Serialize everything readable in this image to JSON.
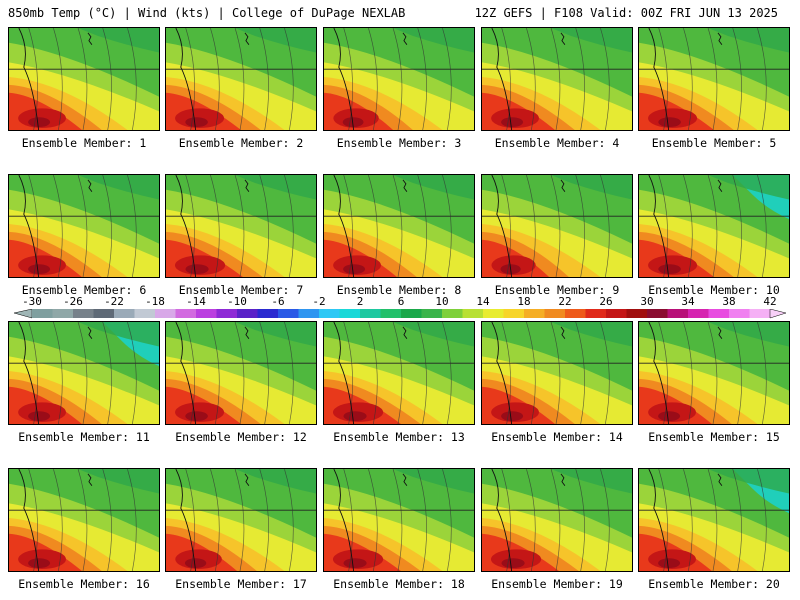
{
  "header": {
    "left": "850mb Temp (°C) | Wind (kts) | College of DuPage NEXLAB",
    "right": "12Z GEFS | F108 Valid: 00Z FRI JUN 13 2025"
  },
  "colorbar": {
    "ticks": [
      "-30",
      "-26",
      "-22",
      "-18",
      "-14",
      "-10",
      "-6",
      "-2",
      "2",
      "6",
      "10",
      "14",
      "18",
      "22",
      "26",
      "30",
      "34",
      "38",
      "42"
    ],
    "colors": [
      "#7f9f9f",
      "#8fa7a7",
      "#77818a",
      "#5f6a77",
      "#9aaab8",
      "#c1c9d4",
      "#d8a8e8",
      "#d26be0",
      "#bb40e0",
      "#8e2ad6",
      "#5a22c8",
      "#2a2ad0",
      "#2a5ae6",
      "#2f96f0",
      "#2ec8f5",
      "#1ad8d8",
      "#1ec8a0",
      "#22c06a",
      "#1aa84a",
      "#3ab44a",
      "#7ed03a",
      "#b8e034",
      "#e8ec30",
      "#f7d52a",
      "#f5ae25",
      "#f08a20",
      "#ee5a1a",
      "#e02a1a",
      "#c41616",
      "#a00e0e",
      "#8a0c30",
      "#b81078",
      "#d624b0",
      "#e84ce0",
      "#f080f0",
      "#f5b0f5"
    ],
    "left_arrow": "#9fb6b6",
    "right_arrow": "#f8d0f8"
  },
  "members": [
    {
      "label": "Ensemble Member: 1",
      "warmth": 0.85,
      "cool": 0.55
    },
    {
      "label": "Ensemble Member: 2",
      "warmth": 0.9,
      "cool": 0.45
    },
    {
      "label": "Ensemble Member: 3",
      "warmth": 0.75,
      "cool": 0.5
    },
    {
      "label": "Ensemble Member: 4",
      "warmth": 0.85,
      "cool": 0.45
    },
    {
      "label": "Ensemble Member: 5",
      "warmth": 0.9,
      "cool": 0.5
    },
    {
      "label": "Ensemble Member: 6",
      "warmth": 0.85,
      "cool": 0.5
    },
    {
      "label": "Ensemble Member: 7",
      "warmth": 0.95,
      "cool": 0.35
    },
    {
      "label": "Ensemble Member: 8",
      "warmth": 0.85,
      "cool": 0.55
    },
    {
      "label": "Ensemble Member: 9",
      "warmth": 0.7,
      "cool": 0.5
    },
    {
      "label": "Ensemble Member: 10",
      "warmth": 0.9,
      "cool": 0.8
    },
    {
      "label": "Ensemble Member: 11",
      "warmth": 0.85,
      "cool": 0.85
    },
    {
      "label": "Ensemble Member: 12",
      "warmth": 0.9,
      "cool": 0.5
    },
    {
      "label": "Ensemble Member: 13",
      "warmth": 0.95,
      "cool": 0.55
    },
    {
      "label": "Ensemble Member: 14",
      "warmth": 0.85,
      "cool": 0.6
    },
    {
      "label": "Ensemble Member: 15",
      "warmth": 0.85,
      "cool": 0.45
    },
    {
      "label": "Ensemble Member: 16",
      "warmth": 0.85,
      "cool": 0.45
    },
    {
      "label": "Ensemble Member: 17",
      "warmth": 0.8,
      "cool": 0.6
    },
    {
      "label": "Ensemble Member: 18",
      "warmth": 0.95,
      "cool": 0.5
    },
    {
      "label": "Ensemble Member: 19",
      "warmth": 0.95,
      "cool": 0.5
    },
    {
      "label": "Ensemble Member: 20",
      "warmth": 0.85,
      "cool": 0.8
    }
  ]
}
